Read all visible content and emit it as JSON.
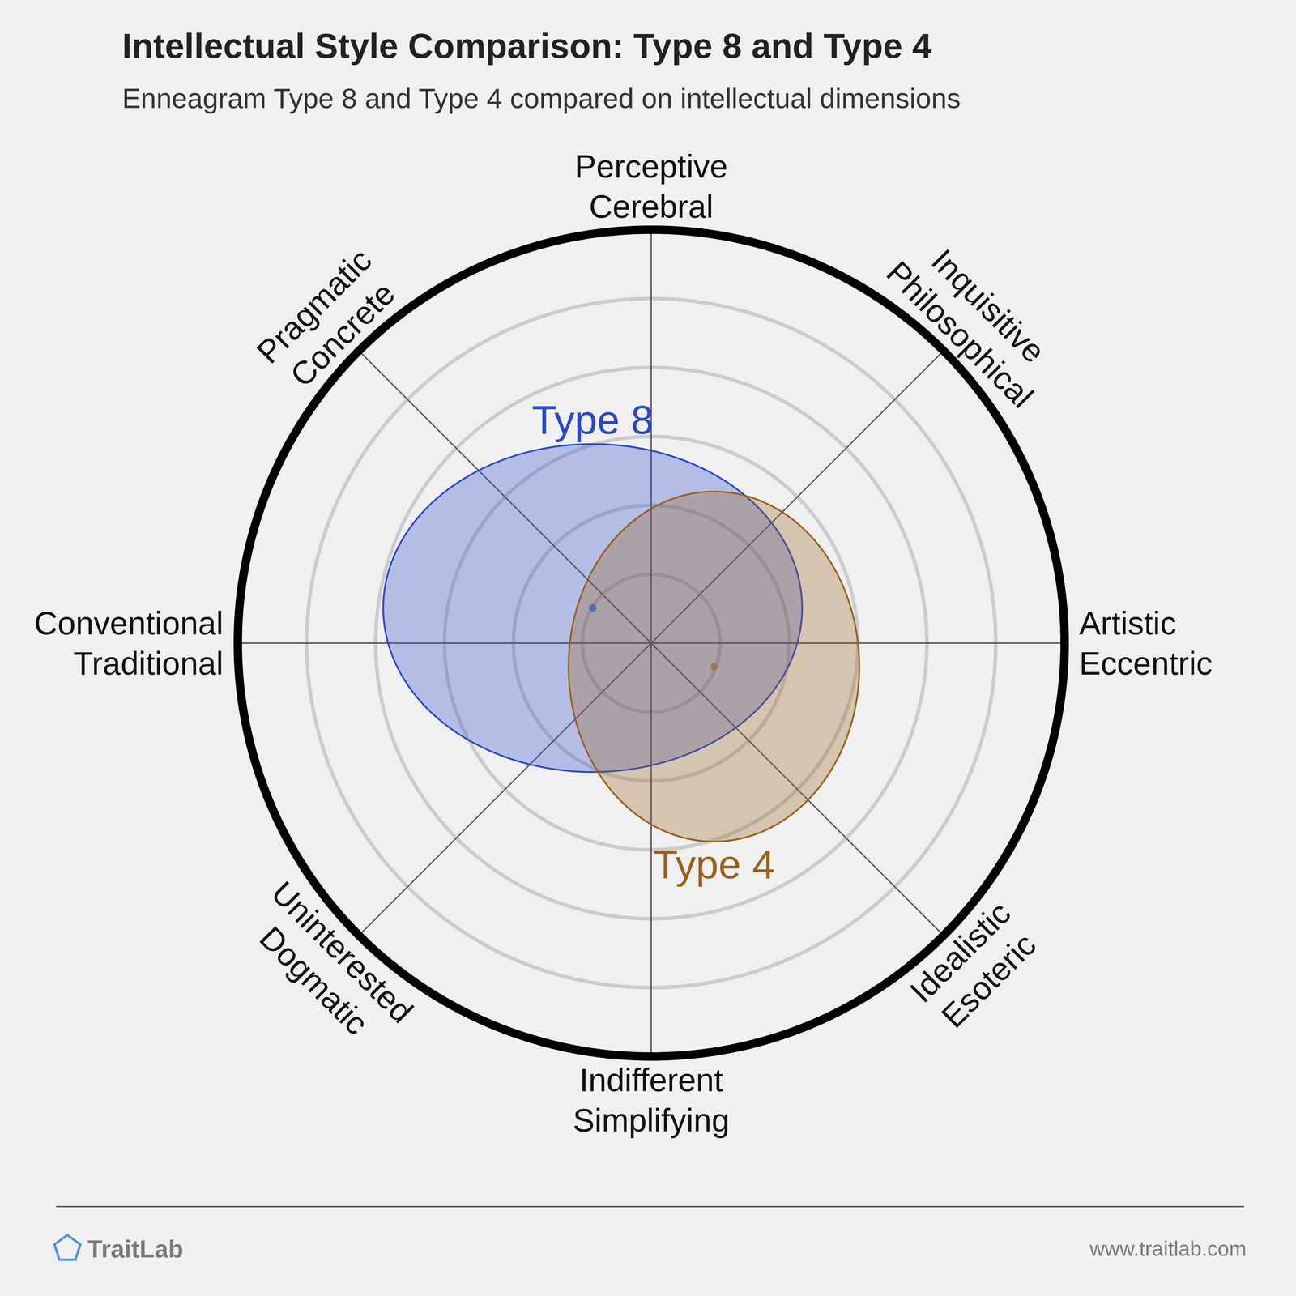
{
  "chart_data": {
    "type": "scatter",
    "title": "Intellectual Style Comparison: Type 8 and Type 4",
    "subtitle": "Enneagram Type 8 and Type 4 compared on intellectual dimensions",
    "dimensions": [
      "Perceptive\nCerebral",
      "Inquisitive\nPhilosophical",
      "Artistic\nEccentric",
      "Idealistic\nEsoteric",
      "Indifferent\nSimplifying",
      "Uninterested\nDogmatic",
      "Conventional\nTraditional",
      "Pragmatic\nConcrete"
    ],
    "xlim": [
      -6,
      6
    ],
    "ylim": [
      -6,
      6
    ],
    "rings": [
      1,
      2,
      3,
      4,
      5
    ],
    "grid": true,
    "tick_labels": false,
    "series": [
      {
        "name": "Type 8",
        "color": "#2a48cc",
        "x": -0.85,
        "y": 0.51,
        "x_spread": 3.04,
        "y_spread": 2.38
      },
      {
        "name": "Type 4",
        "color": "#99601a",
        "x": 0.91,
        "y": -0.34,
        "x_spread": 2.11,
        "y_spread": 2.54
      }
    ],
    "brand": "TraitLab",
    "url": "www.traitlab.com"
  }
}
